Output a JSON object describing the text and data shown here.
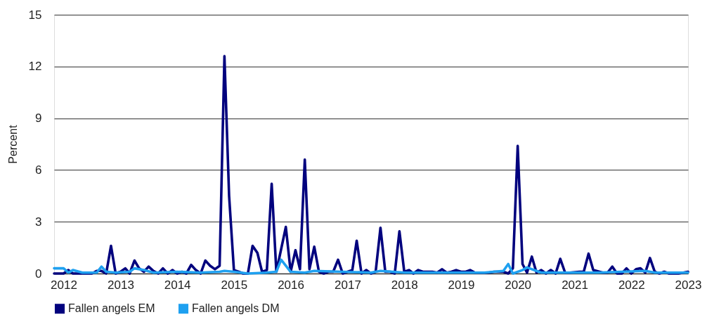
{
  "chart_data": {
    "type": "line",
    "ylabel": "Percent",
    "ylim": [
      0,
      15
    ],
    "yticks": [
      0,
      3,
      6,
      9,
      12,
      15
    ],
    "xlim": [
      "2011-11",
      "2023-01"
    ],
    "xticks": [
      "2012",
      "2013",
      "2014",
      "2015",
      "2016",
      "2017",
      "2018",
      "2019",
      "2020",
      "2021",
      "2022",
      "2023"
    ],
    "grid": "y",
    "legend": "bottom left",
    "marker": "none",
    "line_style": "solid",
    "series": [
      {
        "name": "Fallen angels EM",
        "color": "#02027e",
        "x": [
          "2011-11",
          "2012-01",
          "2012-02",
          "2012-03",
          "2012-07",
          "2012-08",
          "2012-09",
          "2012-10",
          "2012-11",
          "2012-12",
          "2013-01",
          "2013-02",
          "2013-03",
          "2013-04",
          "2013-05",
          "2013-06",
          "2013-07",
          "2013-08",
          "2013-09",
          "2013-10",
          "2013-11",
          "2013-12",
          "2014-01",
          "2014-02",
          "2014-03",
          "2014-04",
          "2014-05",
          "2014-06",
          "2014-07",
          "2014-08",
          "2014-09",
          "2014-10",
          "2014-11",
          "2014-12",
          "2015-01",
          "2015-02",
          "2015-03",
          "2015-04",
          "2015-05",
          "2015-06",
          "2015-07",
          "2015-08",
          "2015-09",
          "2015-10",
          "2015-12",
          "2016-01",
          "2016-02",
          "2016-03",
          "2016-04",
          "2016-05",
          "2016-06",
          "2016-07",
          "2016-08",
          "2016-09",
          "2016-10",
          "2016-11",
          "2016-12",
          "2017-01",
          "2017-02",
          "2017-03",
          "2017-04",
          "2017-05",
          "2017-06",
          "2017-07",
          "2017-08",
          "2017-09",
          "2017-10",
          "2017-11",
          "2017-12",
          "2018-01",
          "2018-02",
          "2018-03",
          "2018-04",
          "2018-05",
          "2018-07",
          "2018-08",
          "2018-09",
          "2018-10",
          "2018-11",
          "2018-12",
          "2019-01",
          "2019-02",
          "2019-03",
          "2019-04",
          "2019-07",
          "2019-08",
          "2019-10",
          "2019-11",
          "2019-12",
          "2020-01",
          "2020-02",
          "2020-03",
          "2020-04",
          "2020-05",
          "2020-06",
          "2020-07",
          "2020-08",
          "2020-09",
          "2020-10",
          "2020-11",
          "2020-12",
          "2021-02",
          "2021-03",
          "2021-04",
          "2021-05",
          "2021-07",
          "2021-08",
          "2021-09",
          "2021-10",
          "2021-11",
          "2021-12",
          "2022-01",
          "2022-02",
          "2022-03",
          "2022-04",
          "2022-05",
          "2022-06",
          "2022-07",
          "2022-08",
          "2022-09",
          "2022-11",
          "2023-01"
        ],
        "values": [
          0,
          0,
          0.2,
          0,
          0,
          0.15,
          0.15,
          0,
          1.6,
          0,
          0.1,
          0.3,
          0,
          0.75,
          0.3,
          0.1,
          0.4,
          0.15,
          0,
          0.3,
          0,
          0.2,
          0,
          0.1,
          0,
          0.5,
          0.2,
          0,
          0.75,
          0.45,
          0.25,
          0.45,
          12.6,
          4.5,
          0.2,
          0.1,
          0,
          0,
          1.6,
          1.2,
          0.1,
          0.2,
          5.2,
          0.1,
          2.7,
          0.1,
          1.35,
          0.25,
          6.6,
          0.25,
          1.55,
          0.1,
          0,
          0.1,
          0.1,
          0.8,
          0,
          0.1,
          0.2,
          1.9,
          0,
          0.2,
          0,
          0.1,
          2.65,
          0.1,
          0.1,
          0,
          2.45,
          0.1,
          0.2,
          0,
          0.2,
          0.1,
          0.1,
          0.05,
          0.25,
          0.05,
          0.1,
          0.2,
          0.1,
          0.1,
          0.2,
          0.05,
          0.05,
          0.1,
          0.1,
          0,
          0.3,
          7.4,
          0.55,
          0.05,
          0.98,
          0.05,
          0.2,
          0,
          0.2,
          0,
          0.85,
          0.05,
          0.05,
          0.1,
          0.1,
          1.15,
          0.2,
          0.05,
          0.05,
          0.4,
          0,
          0,
          0.3,
          0,
          0.25,
          0.3,
          0.05,
          0.9,
          0.1,
          0,
          0.1,
          0,
          0,
          0.1
        ]
      },
      {
        "name": "Fallen angels DM",
        "color": "#1ea0f0",
        "x": [
          "2011-11",
          "2012-01",
          "2012-02",
          "2012-03",
          "2012-05",
          "2012-08",
          "2012-09",
          "2012-10",
          "2012-12",
          "2013-03",
          "2013-04",
          "2013-06",
          "2013-08",
          "2014-01",
          "2014-06",
          "2014-10",
          "2014-11",
          "2015-01",
          "2015-04",
          "2015-08",
          "2015-10",
          "2015-11",
          "2016-01",
          "2016-04",
          "2016-06",
          "2017-06",
          "2017-08",
          "2018-01",
          "2019-06",
          "2019-10",
          "2019-11",
          "2019-12",
          "2020-02",
          "2020-03",
          "2020-06",
          "2021-06",
          "2022-04",
          "2022-06",
          "2023-01"
        ],
        "values": [
          0.3,
          0.3,
          0.05,
          0.2,
          0.05,
          0.05,
          0.4,
          0.1,
          0.05,
          0.1,
          0.3,
          0.2,
          0.05,
          0.1,
          0.05,
          0.1,
          0.15,
          0.1,
          0,
          0.05,
          0.1,
          0.8,
          0.1,
          0.05,
          0.15,
          0.05,
          0.15,
          0.05,
          0.05,
          0.15,
          0.55,
          0,
          0.2,
          0.35,
          0.05,
          0.05,
          0.15,
          0.05,
          0.05
        ]
      }
    ]
  }
}
